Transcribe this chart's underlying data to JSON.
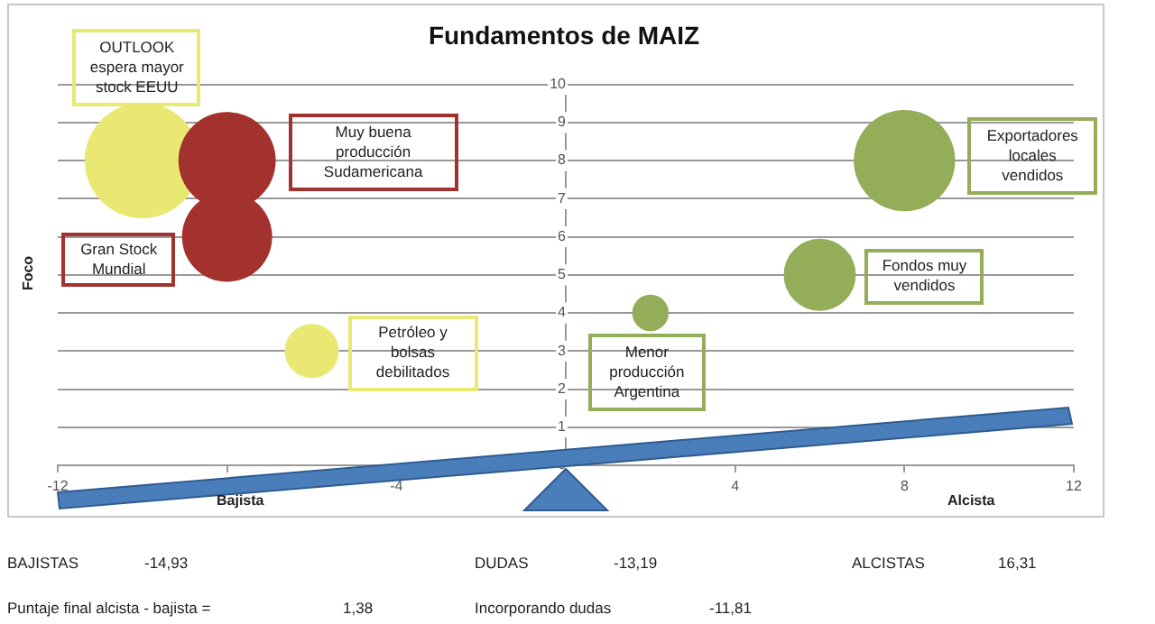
{
  "chart_data": {
    "type": "bubble",
    "title": "Fundamentos de MAIZ",
    "ylabel": "Foco",
    "x": [
      -10,
      -8,
      -8,
      -6,
      2,
      6,
      8
    ],
    "values": [
      8,
      8,
      6,
      3,
      4,
      5,
      8
    ],
    "sizes": [
      1,
      0.71,
      0.61,
      0.22,
      0.1,
      0.39,
      0.77
    ],
    "colors": [
      "#e8e872",
      "#a3322f",
      "#a3322f",
      "#e8e872",
      "#93ad58",
      "#93ad58",
      "#93ad58"
    ],
    "xlim": [
      -12,
      12
    ],
    "xticks": [
      -12,
      {
        "value": -8,
        "label": null
      },
      -4,
      {
        "value": 0,
        "label": null
      },
      4,
      8,
      12
    ],
    "ylim": [
      0,
      10
    ],
    "yticks": [
      0,
      1,
      2,
      3,
      4,
      5,
      6,
      7,
      8,
      9,
      10
    ],
    "grid": "y",
    "legend": false,
    "annotations": [
      "OUTLOOK espera mayor stock EEUU",
      "Muy buena producción Sudamericana",
      "Gran Stock Mundial",
      "Petróleo y bolsas debilitados",
      "Menor producción Argentina",
      "Fondos muy vendidos",
      "Exportadores locales vendidos",
      "Bajista",
      "Alcista",
      "BAJISTAS",
      "-14,93",
      "DUDAS",
      "-13,19",
      "ALCISTAS",
      "16,31",
      "Puntaje final alcista - bajista =",
      "1,38",
      "Incorporando dudas",
      "-11,81"
    ]
  }
}
